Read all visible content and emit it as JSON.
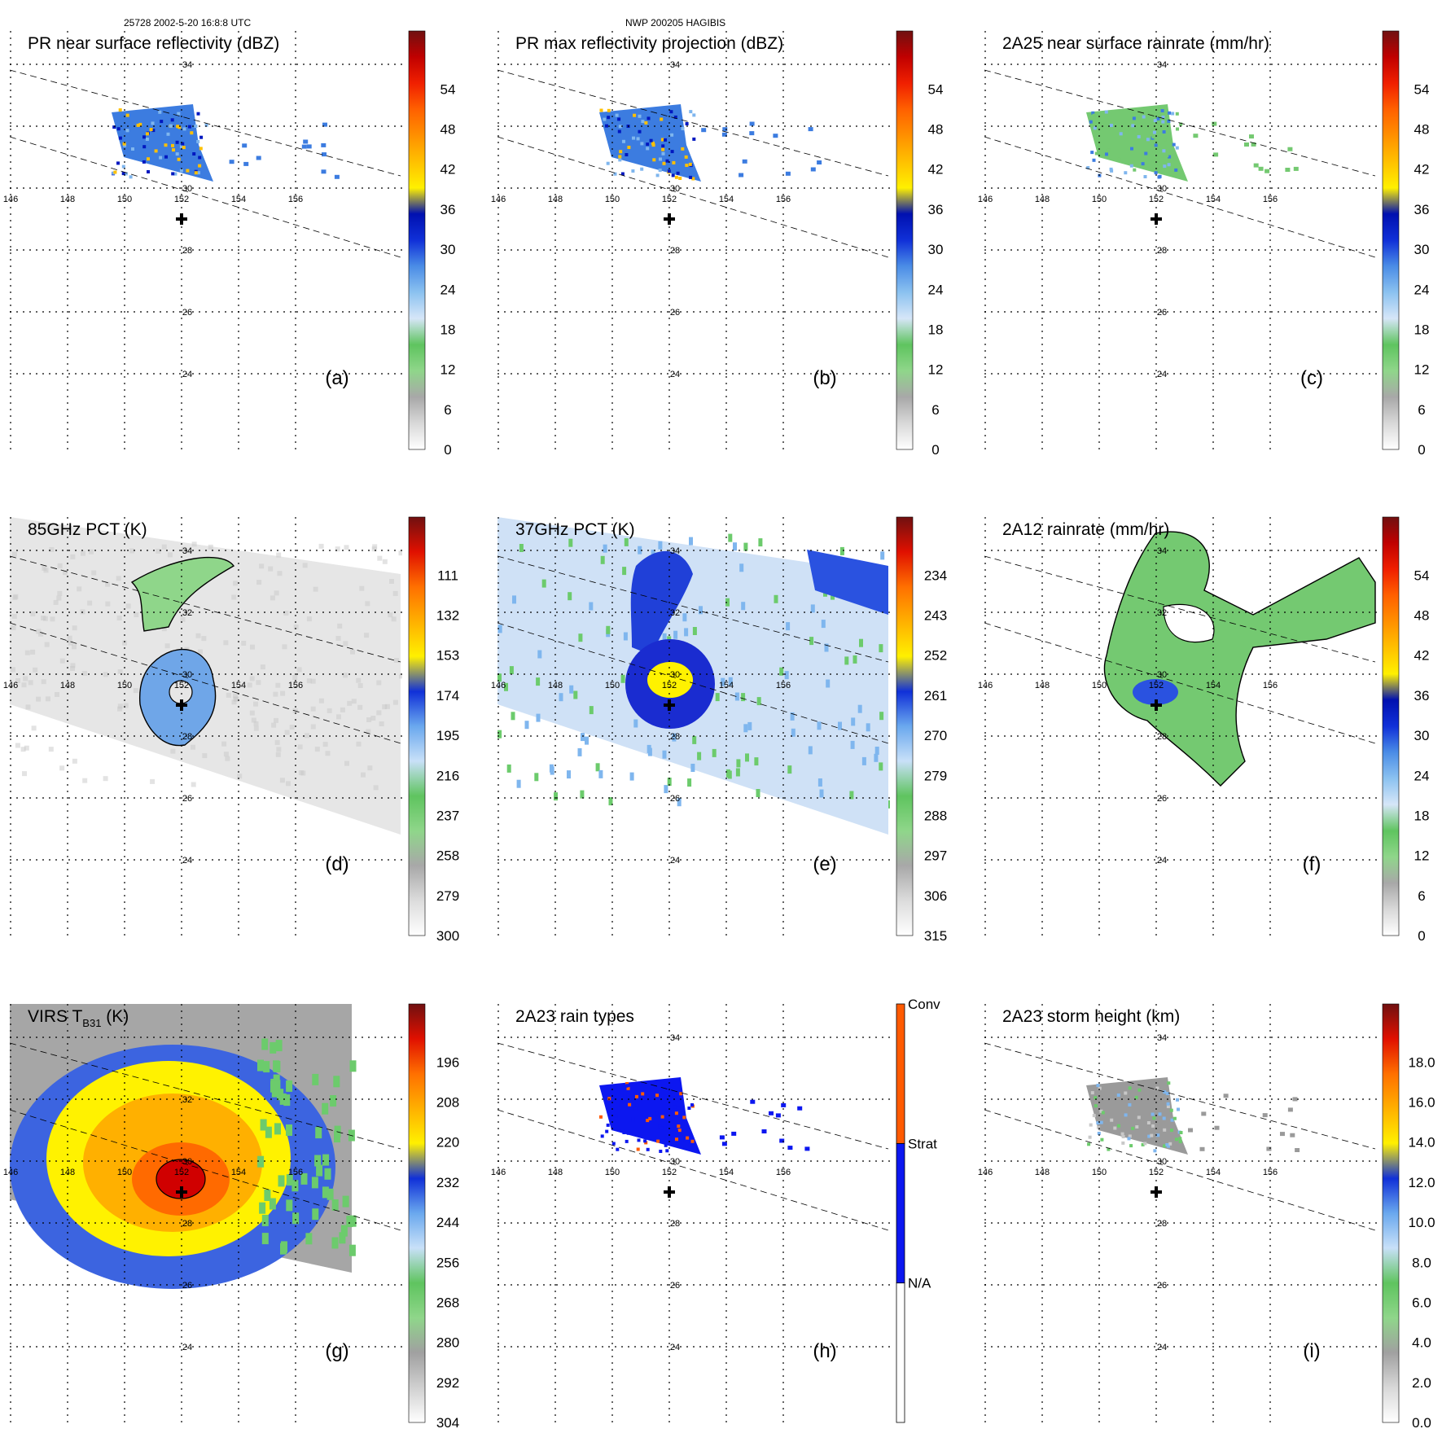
{
  "header": {
    "left": "25728 2002-5-20 16:8:8 UTC",
    "center": "NWP 200205 HAGIBIS"
  },
  "chart_data": [
    {
      "type": "heatmap",
      "panel": "(a)",
      "title": "PR near surface reflectivity (dBZ)",
      "lon_ticks": [
        146,
        148,
        150,
        152,
        154,
        156
      ],
      "lat_ticks": [
        34,
        30,
        28,
        26,
        24
      ],
      "colorbar": {
        "ticks": [
          "0",
          "6",
          "12",
          "18",
          "24",
          "30",
          "36",
          "42",
          "48",
          "54"
        ],
        "range": [
          0,
          60
        ]
      },
      "swath": "pr"
    },
    {
      "type": "heatmap",
      "panel": "(b)",
      "title": "PR max reflectivity projection (dBZ)",
      "lon_ticks": [
        146,
        148,
        150,
        152,
        154,
        156
      ],
      "lat_ticks": [
        34,
        30,
        28,
        26,
        24
      ],
      "colorbar": {
        "ticks": [
          "0",
          "6",
          "12",
          "18",
          "24",
          "30",
          "36",
          "42",
          "48",
          "54"
        ],
        "range": [
          0,
          60
        ]
      },
      "swath": "pr"
    },
    {
      "type": "heatmap",
      "panel": "(c)",
      "title": "2A25 near surface rainrate (mm/hr)",
      "lon_ticks": [
        146,
        148,
        150,
        152,
        154,
        156
      ],
      "lat_ticks": [
        34,
        30,
        28,
        26,
        24
      ],
      "colorbar": {
        "ticks": [
          "0",
          "6",
          "12",
          "18",
          "24",
          "30",
          "36",
          "42",
          "48",
          "54"
        ],
        "range": [
          0,
          60
        ]
      },
      "swath": "pr"
    },
    {
      "type": "heatmap",
      "panel": "(d)",
      "title": "85GHz PCT (K)",
      "lon_ticks": [
        146,
        148,
        150,
        152,
        154,
        156
      ],
      "lat_ticks": [
        34,
        32,
        30,
        28,
        26,
        24
      ],
      "colorbar": {
        "ticks": [
          "300",
          "279",
          "258",
          "237",
          "216",
          "195",
          "174",
          "153",
          "132",
          "111"
        ],
        "range": [
          90,
          300
        ]
      },
      "swath": "tmi"
    },
    {
      "type": "heatmap",
      "panel": "(e)",
      "title": "37GHz PCT (K)",
      "lon_ticks": [
        146,
        148,
        150,
        152,
        154,
        156
      ],
      "lat_ticks": [
        34,
        32,
        30,
        28,
        26,
        24
      ],
      "colorbar": {
        "ticks": [
          "315",
          "306",
          "297",
          "288",
          "279",
          "270",
          "261",
          "252",
          "243",
          "234"
        ],
        "range": [
          225,
          315
        ]
      },
      "swath": "tmi"
    },
    {
      "type": "heatmap",
      "panel": "(f)",
      "title": "2A12 rainrate (mm/hr)",
      "lon_ticks": [
        146,
        148,
        150,
        152,
        154,
        156
      ],
      "lat_ticks": [
        34,
        32,
        30,
        28,
        26,
        24
      ],
      "colorbar": {
        "ticks": [
          "0",
          "6",
          "12",
          "18",
          "24",
          "30",
          "36",
          "42",
          "48",
          "54"
        ],
        "range": [
          0,
          60
        ]
      },
      "swath": "tmi"
    },
    {
      "type": "heatmap",
      "panel": "(g)",
      "title": "VIRS T",
      "title_sub": "B31",
      "title_unit": " (K)",
      "lon_ticks": [
        146,
        148,
        150,
        152,
        154,
        156
      ],
      "lat_ticks": [
        32,
        30,
        28,
        26,
        24
      ],
      "colorbar": {
        "ticks": [
          "304",
          "292",
          "280",
          "268",
          "256",
          "244",
          "232",
          "220",
          "208",
          "196"
        ],
        "range": [
          184,
          304
        ]
      },
      "swath": "virs"
    },
    {
      "type": "heatmap",
      "panel": "(h)",
      "title": "2A23 rain types",
      "lon_ticks": [
        146,
        148,
        150,
        152,
        154,
        156
      ],
      "lat_ticks": [
        34,
        30,
        28,
        26,
        24
      ],
      "colorbar": {
        "categorical": [
          "N/A",
          "Strat",
          "Conv"
        ]
      },
      "swath": "pr"
    },
    {
      "type": "heatmap",
      "panel": "(i)",
      "title": "2A23 storm height (km)",
      "lon_ticks": [
        146,
        148,
        150,
        152,
        154,
        156
      ],
      "lat_ticks": [
        34,
        30,
        28,
        26,
        24
      ],
      "colorbar": {
        "ticks": [
          "0.0",
          "2.0",
          "4.0",
          "6.0",
          "8.0",
          "10.0",
          "12.0",
          "14.0",
          "16.0",
          "18.0"
        ],
        "range": [
          0,
          20
        ]
      },
      "swath": "pr"
    }
  ],
  "map": {
    "lon_range": [
      146,
      158
    ],
    "lat_range": [
      23,
      35
    ],
    "storm_center": [
      152,
      29
    ]
  },
  "colors": {
    "dbz": [
      "#ffffff",
      "#f0f0f0",
      "#dcdcdc",
      "#c6c6c6",
      "#aaaaaa",
      "#8f8f8f",
      "#9ad98f",
      "#6ccb6c",
      "#cde0f5",
      "#a8cdf2",
      "#7fb6ee",
      "#5a9ce8",
      "#3c7ce0",
      "#1e4ed8",
      "#0018c0",
      "#fff200",
      "#ffd400",
      "#ffb000",
      "#ff9200",
      "#ff7400",
      "#ff5000",
      "#f01e00",
      "#d00000",
      "#a80000",
      "#7c1010",
      "#4a0a0a"
    ],
    "conv": "#ff5a00",
    "strat": "#0c17f0"
  }
}
